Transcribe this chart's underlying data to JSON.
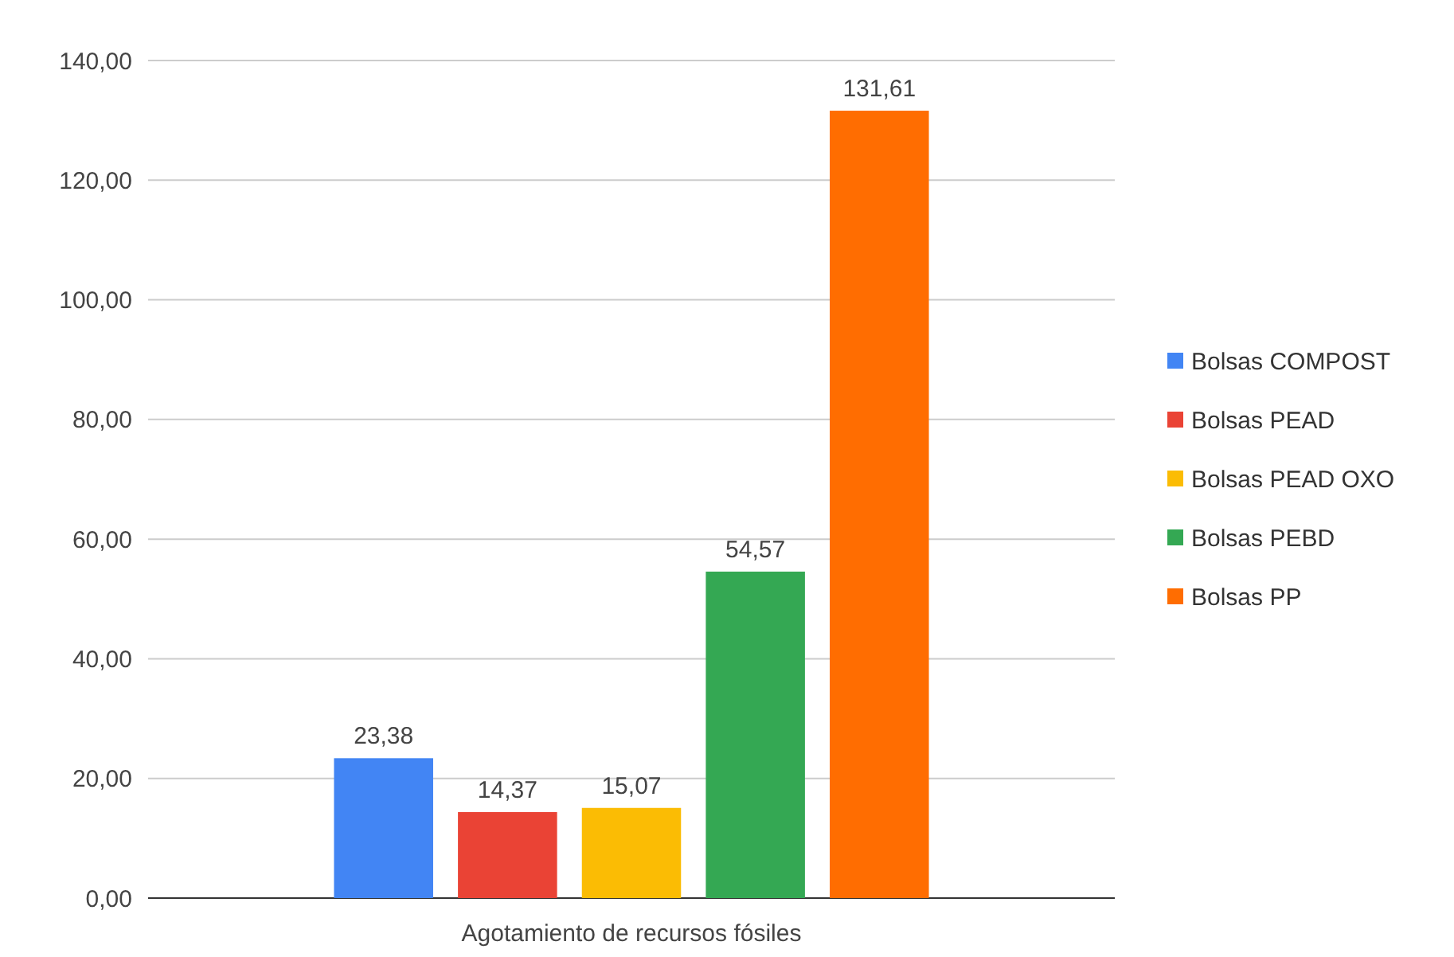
{
  "chart_data": {
    "type": "bar",
    "categories": [
      "Agotamiento de recursos fósiles"
    ],
    "series": [
      {
        "name": "Bolsas COMPOST",
        "color": "#4285f4",
        "values": [
          23.38
        ],
        "value_labels": [
          "23,38"
        ]
      },
      {
        "name": "Bolsas PEAD",
        "color": "#ea4335",
        "values": [
          14.37
        ],
        "value_labels": [
          "14,37"
        ]
      },
      {
        "name": "Bolsas PEAD OXO",
        "color": "#fbbc04",
        "values": [
          15.07
        ],
        "value_labels": [
          "15,07"
        ]
      },
      {
        "name": "Bolsas PEBD",
        "color": "#34a853",
        "values": [
          54.57
        ],
        "value_labels": [
          "54,57"
        ]
      },
      {
        "name": "Bolsas PP",
        "color": "#ff6d01",
        "values": [
          131.61
        ],
        "value_labels": [
          "131,61"
        ]
      }
    ],
    "ylim": [
      0,
      140
    ],
    "yticks": [
      {
        "value": 0,
        "label": "0,00"
      },
      {
        "value": 20,
        "label": "20,00"
      },
      {
        "value": 40,
        "label": "40,00"
      },
      {
        "value": 60,
        "label": "60,00"
      },
      {
        "value": 80,
        "label": "80,00"
      },
      {
        "value": 100,
        "label": "100,00"
      },
      {
        "value": 120,
        "label": "120,00"
      },
      {
        "value": 140,
        "label": "140,00"
      }
    ],
    "grid": "y",
    "legend": "right"
  }
}
